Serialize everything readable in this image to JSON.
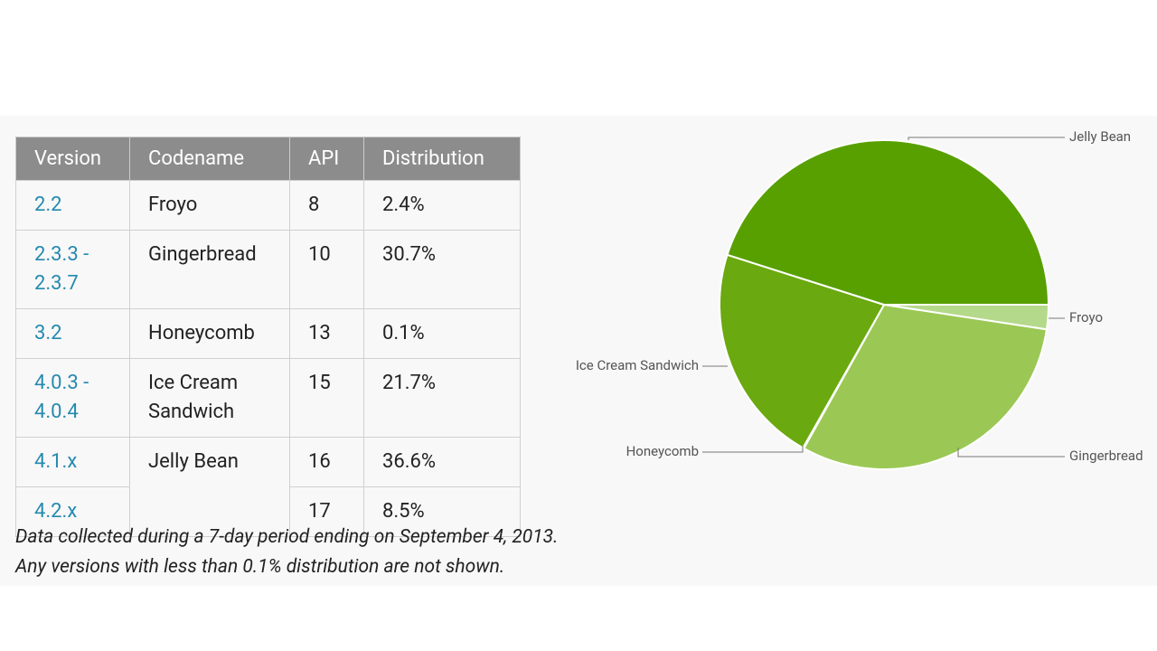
{
  "table": {
    "header": [
      "Version",
      "Codename",
      "API",
      "Distribution"
    ],
    "rows": [
      {
        "version": "2.2",
        "codename": "Froyo",
        "api": "8",
        "distribution": "2.4%"
      },
      {
        "version": "2.3.3 - 2.3.7",
        "codename": "Gingerbread",
        "api": "10",
        "distribution": "30.7%"
      },
      {
        "version": "3.2",
        "codename": "Honeycomb",
        "api": "13",
        "distribution": "0.1%"
      },
      {
        "version": "4.0.3 - 4.0.4",
        "codename": "Ice Cream Sandwich",
        "api": "15",
        "distribution": "21.7%"
      },
      {
        "version": "4.1.x",
        "codename": "Jelly Bean",
        "api": "16",
        "distribution": "36.6%"
      },
      {
        "version": "4.2.x",
        "api": "17",
        "distribution": "8.5%"
      }
    ]
  },
  "notes": [
    "Data collected during a 7-day period ending on September 4, 2013.",
    "Any versions with less than 0.1% distribution are not shown."
  ],
  "chart_data": {
    "type": "pie",
    "categories": [
      "Froyo",
      "Gingerbread",
      "Honeycomb",
      "Ice Cream Sandwich",
      "Jelly Bean"
    ],
    "values": [
      2.4,
      30.7,
      0.1,
      21.7,
      45.1
    ],
    "colors": [
      "#b5d98a",
      "#9bc855",
      "#8fc24a",
      "#6aa90f",
      "#58a000"
    ]
  }
}
